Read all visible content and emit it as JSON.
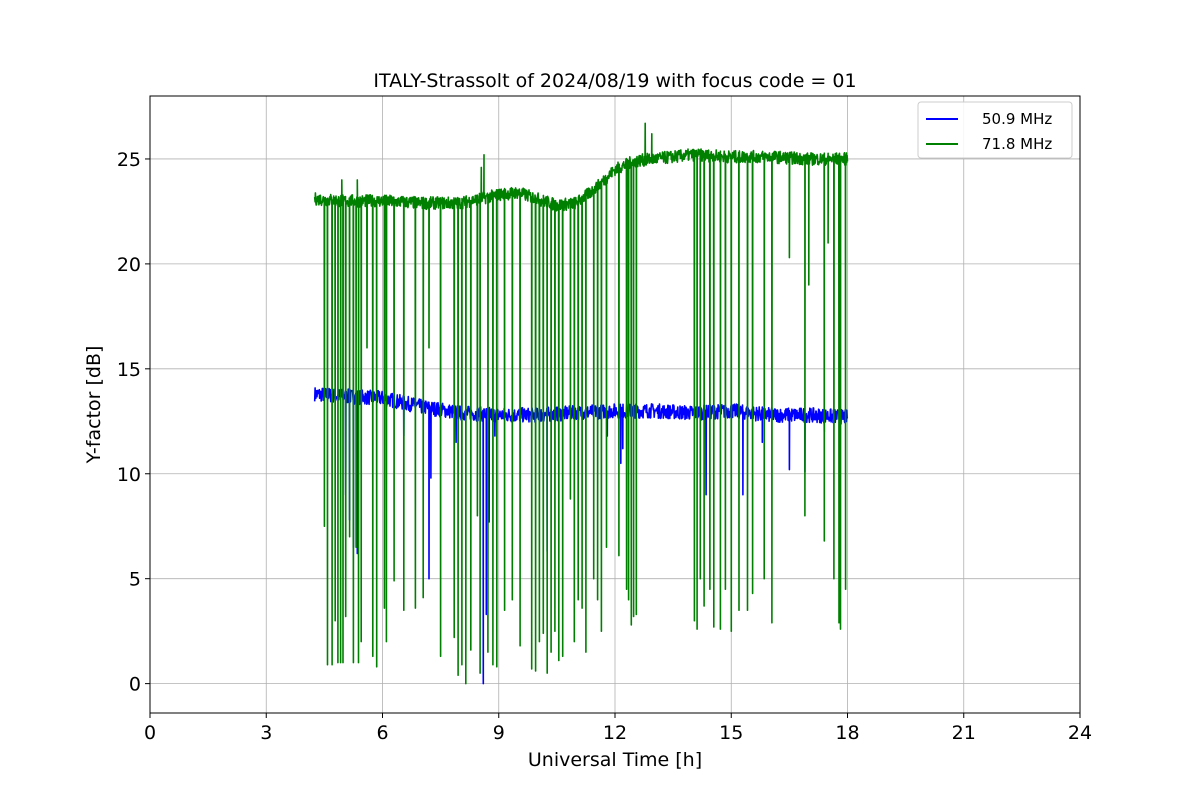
{
  "chart_data": {
    "type": "line",
    "title": "ITALY-Strassolt of 2024/08/19 with focus code = 01",
    "xlabel": "Universal Time [h]",
    "ylabel": "Y-factor [dB]",
    "xlim": [
      0,
      24
    ],
    "ylim": [
      -1.4,
      28
    ],
    "x_ticks": [
      0,
      3,
      6,
      9,
      12,
      15,
      18,
      21,
      24
    ],
    "x_tick_labels": [
      "0",
      "3",
      "6",
      "9",
      "12",
      "15",
      "18",
      "21",
      "24"
    ],
    "y_ticks": [
      0,
      5,
      10,
      15,
      20,
      25
    ],
    "y_tick_labels": [
      "0",
      "5",
      "10",
      "15",
      "20",
      "25"
    ],
    "grid": true,
    "legend_position": "top-right",
    "series": [
      {
        "name": "50.9 MHz",
        "color": "#0000ff",
        "baseline": [
          [
            4.25,
            13.8
          ],
          [
            5.0,
            13.7
          ],
          [
            6.0,
            13.6
          ],
          [
            7.0,
            13.2
          ],
          [
            8.0,
            12.9
          ],
          [
            9.0,
            12.8
          ],
          [
            10.0,
            12.8
          ],
          [
            11.0,
            12.9
          ],
          [
            12.0,
            13.0
          ],
          [
            13.0,
            13.0
          ],
          [
            14.0,
            12.9
          ],
          [
            15.0,
            13.0
          ],
          [
            16.0,
            12.8
          ],
          [
            17.0,
            12.8
          ],
          [
            18.0,
            12.7
          ]
        ],
        "noise": 0.35,
        "dips": [
          [
            5.05,
            9.0
          ],
          [
            5.15,
            7.8
          ],
          [
            5.25,
            6.5
          ],
          [
            5.35,
            6.2
          ],
          [
            6.55,
            11.8
          ],
          [
            7.2,
            5.0
          ],
          [
            7.25,
            9.8
          ],
          [
            7.9,
            11.5
          ],
          [
            8.6,
            0.0
          ],
          [
            8.68,
            3.3
          ],
          [
            8.75,
            7.7
          ],
          [
            8.9,
            11.8
          ],
          [
            10.25,
            6.3
          ],
          [
            11.8,
            11.8
          ],
          [
            12.15,
            10.5
          ],
          [
            12.2,
            11.2
          ],
          [
            14.35,
            9.0
          ],
          [
            15.3,
            9.0
          ],
          [
            15.8,
            11.5
          ],
          [
            16.5,
            10.2
          ],
          [
            16.9,
            10.1
          ],
          [
            17.4,
            12.0
          ]
        ]
      },
      {
        "name": "71.8 MHz",
        "color": "#008000",
        "baseline": [
          [
            4.25,
            23.1
          ],
          [
            5.0,
            23.0
          ],
          [
            6.0,
            23.0
          ],
          [
            7.0,
            22.9
          ],
          [
            8.0,
            22.9
          ],
          [
            8.5,
            23.1
          ],
          [
            9.0,
            23.3
          ],
          [
            9.5,
            23.4
          ],
          [
            10.0,
            23.1
          ],
          [
            10.5,
            22.8
          ],
          [
            11.0,
            22.9
          ],
          [
            11.5,
            23.6
          ],
          [
            12.0,
            24.5
          ],
          [
            12.5,
            24.9
          ],
          [
            13.0,
            25.0
          ],
          [
            14.0,
            25.2
          ],
          [
            15.0,
            25.1
          ],
          [
            16.0,
            25.1
          ],
          [
            17.0,
            25.0
          ],
          [
            18.0,
            25.0
          ]
        ],
        "noise": 0.3,
        "spikes": [
          [
            4.95,
            24.0
          ],
          [
            5.35,
            24.0
          ],
          [
            8.55,
            24.6
          ],
          [
            8.62,
            25.2
          ],
          [
            12.78,
            26.7
          ],
          [
            12.95,
            26.2
          ]
        ],
        "dips": [
          [
            4.5,
            7.5
          ],
          [
            4.58,
            0.9
          ],
          [
            4.7,
            0.9
          ],
          [
            4.78,
            3.0
          ],
          [
            4.85,
            1.0
          ],
          [
            4.92,
            1.0
          ],
          [
            4.98,
            1.0
          ],
          [
            5.05,
            3.2
          ],
          [
            5.15,
            7.0
          ],
          [
            5.25,
            1.0
          ],
          [
            5.32,
            6.5
          ],
          [
            5.38,
            1.0
          ],
          [
            5.45,
            2.0
          ],
          [
            5.6,
            16.0
          ],
          [
            5.75,
            1.3
          ],
          [
            5.85,
            0.8
          ],
          [
            6.05,
            3.6
          ],
          [
            6.1,
            2.0
          ],
          [
            6.3,
            4.9
          ],
          [
            6.55,
            3.5
          ],
          [
            6.85,
            3.6
          ],
          [
            7.05,
            4.1
          ],
          [
            7.2,
            16.0
          ],
          [
            7.5,
            1.3
          ],
          [
            7.85,
            2.2
          ],
          [
            7.95,
            0.4
          ],
          [
            8.05,
            0.9
          ],
          [
            8.15,
            0.0
          ],
          [
            8.28,
            1.6
          ],
          [
            8.45,
            8.0
          ],
          [
            8.52,
            0.5
          ],
          [
            8.72,
            1.5
          ],
          [
            8.85,
            0.9
          ],
          [
            8.95,
            0.8
          ],
          [
            9.15,
            3.5
          ],
          [
            9.35,
            4.0
          ],
          [
            9.55,
            1.8
          ],
          [
            9.85,
            0.7
          ],
          [
            9.95,
            0.6
          ],
          [
            10.05,
            2.0
          ],
          [
            10.15,
            2.4
          ],
          [
            10.25,
            0.5
          ],
          [
            10.35,
            1.5
          ],
          [
            10.45,
            2.5
          ],
          [
            10.55,
            1.1
          ],
          [
            10.65,
            1.3
          ],
          [
            10.85,
            8.8
          ],
          [
            10.95,
            2.0
          ],
          [
            11.05,
            4.0
          ],
          [
            11.15,
            3.6
          ],
          [
            11.25,
            1.5
          ],
          [
            11.45,
            5.0
          ],
          [
            11.55,
            4.0
          ],
          [
            11.65,
            2.5
          ],
          [
            11.78,
            6.5
          ],
          [
            12.1,
            6.1
          ],
          [
            12.3,
            4.5
          ],
          [
            12.35,
            4.0
          ],
          [
            12.42,
            2.8
          ],
          [
            12.48,
            3.2
          ],
          [
            12.55,
            3.3
          ],
          [
            14.05,
            3.0
          ],
          [
            14.12,
            2.6
          ],
          [
            14.2,
            5.0
          ],
          [
            14.3,
            3.7
          ],
          [
            14.45,
            4.5
          ],
          [
            14.55,
            2.7
          ],
          [
            14.72,
            2.6
          ],
          [
            14.85,
            4.5
          ],
          [
            15.0,
            2.5
          ],
          [
            15.2,
            3.5
          ],
          [
            15.42,
            3.5
          ],
          [
            15.55,
            4.3
          ],
          [
            15.85,
            5.0
          ],
          [
            16.05,
            2.9
          ],
          [
            16.5,
            20.3
          ],
          [
            16.9,
            8.0
          ],
          [
            17.0,
            19.0
          ],
          [
            17.4,
            6.8
          ],
          [
            17.5,
            21.0
          ],
          [
            17.65,
            5.0
          ],
          [
            17.78,
            2.9
          ],
          [
            17.82,
            2.6
          ],
          [
            17.95,
            4.5
          ]
        ]
      }
    ]
  }
}
